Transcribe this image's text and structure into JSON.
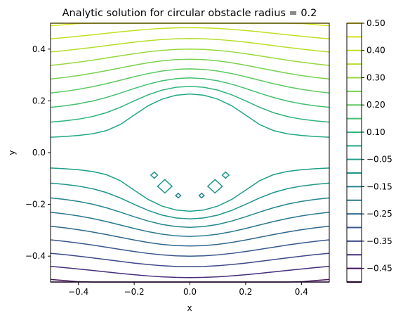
{
  "chart_data": {
    "type": "contour",
    "title": "Analytic solution for circular obstacle radius = 0.2",
    "xlabel": "x",
    "ylabel": "y",
    "xlim": [
      -0.5,
      0.5
    ],
    "ylim": [
      -0.5,
      0.5
    ],
    "xticks": [
      -0.4,
      -0.2,
      0.0,
      0.2,
      0.4
    ],
    "yticks": [
      -0.4,
      -0.2,
      0.0,
      0.2,
      0.4
    ],
    "xtick_labels": [
      "−0.4",
      "−0.2",
      "0.0",
      "0.2",
      "0.4"
    ],
    "ytick_labels": [
      "−0.4",
      "−0.2",
      "0.0",
      "0.2",
      "0.4"
    ],
    "obstacle_radius": 0.2,
    "levels": [
      -0.5,
      -0.45,
      -0.4,
      -0.35,
      -0.3,
      -0.25,
      -0.2,
      -0.15,
      -0.1,
      -0.05,
      0.05,
      0.1,
      0.15,
      0.2,
      0.25,
      0.3,
      0.35,
      0.4,
      0.45,
      0.5
    ],
    "level_colors": [
      "#440154",
      "#46135f",
      "#472d7b",
      "#3e4989",
      "#38588c",
      "#31688e",
      "#2a788e",
      "#25858e",
      "#1f958b",
      "#1f9e89",
      "#22a884",
      "#2fb47c",
      "#44bf70",
      "#5ec962",
      "#7ad151",
      "#98d83e",
      "#b5de2b",
      "#c2df23",
      "#d8e219",
      "#fde725"
    ],
    "artifact_levels": [
      -0.1,
      -0.15
    ],
    "colorbar": {
      "tick_labels": [
        "0.50",
        "0.40",
        "0.30",
        "0.20",
        "0.10",
        "−0.05",
        "−0.15",
        "−0.25",
        "−0.35",
        "−0.45"
      ],
      "tick_levels": [
        0.5,
        0.4,
        0.3,
        0.2,
        0.1,
        -0.05,
        -0.15,
        -0.25,
        -0.35,
        -0.45
      ]
    },
    "grid": false
  }
}
